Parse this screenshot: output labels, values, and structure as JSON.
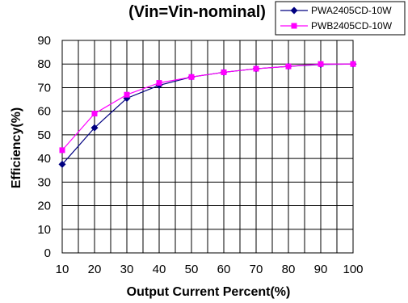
{
  "chart_data": {
    "type": "line",
    "title": "(Vin=Vin-nominal)",
    "xlabel": "Output Current Percent(%)",
    "ylabel": "Efficiency(%)",
    "x": [
      10,
      20,
      30,
      40,
      50,
      60,
      70,
      80,
      90,
      100
    ],
    "xlim": [
      10,
      100
    ],
    "ylim": [
      0,
      90
    ],
    "x_ticks": [
      "10",
      "20",
      "30",
      "40",
      "50",
      "60",
      "70",
      "80",
      "90",
      "100"
    ],
    "y_ticks": [
      "0",
      "10",
      "20",
      "30",
      "40",
      "50",
      "60",
      "70",
      "80",
      "90"
    ],
    "grid": true,
    "legend_position": "top-right",
    "series": [
      {
        "name": "PWA2405CD-10W",
        "color": "#000080",
        "marker": "diamond",
        "values": [
          37.5,
          53,
          65.5,
          71,
          74.5,
          76.5,
          78,
          79,
          79.8,
          80
        ]
      },
      {
        "name": "PWB2405CD-10W",
        "color": "#ff00ff",
        "marker": "square",
        "values": [
          43.5,
          59,
          67,
          72,
          74.5,
          76.5,
          78,
          79,
          80,
          80
        ]
      }
    ]
  }
}
